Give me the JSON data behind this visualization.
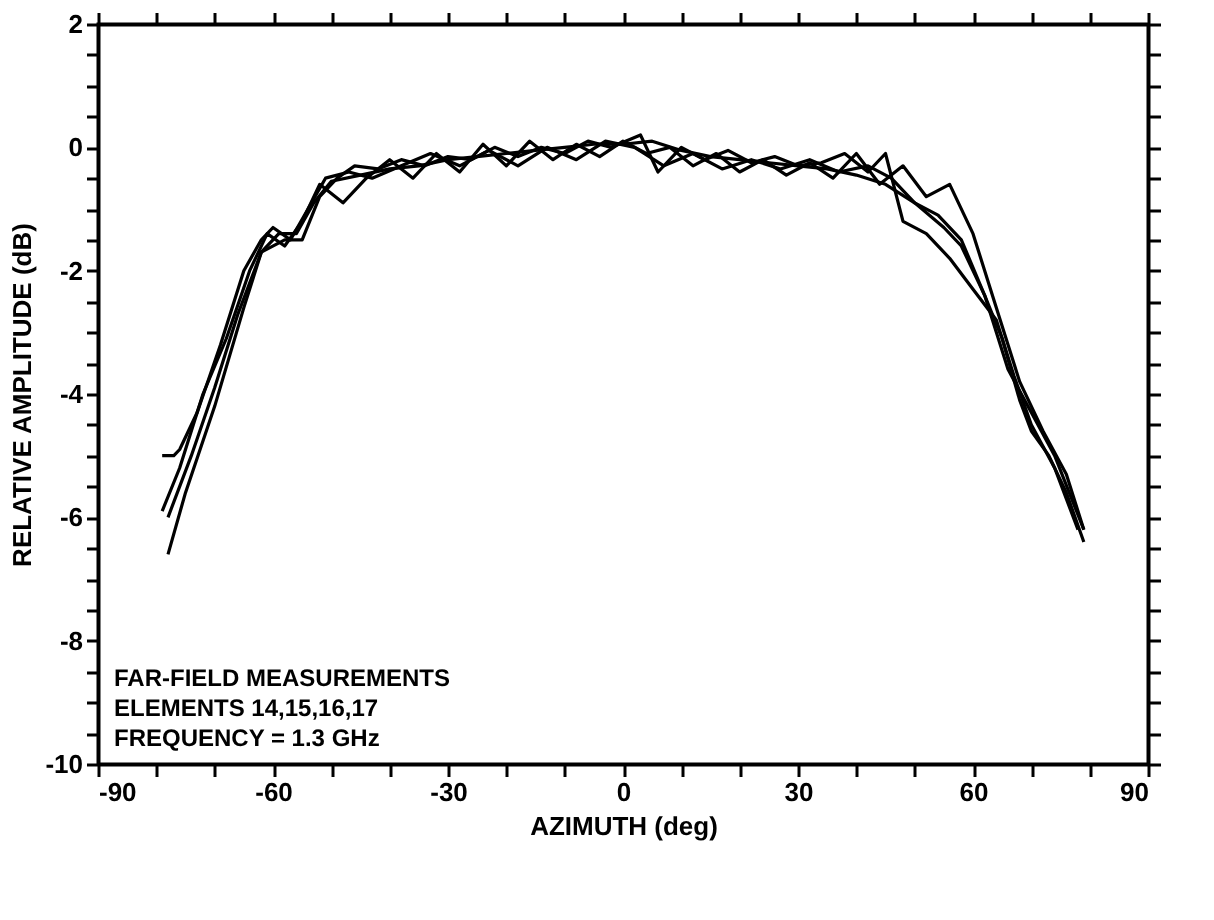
{
  "chart_data": {
    "type": "line",
    "xlabel": "AZIMUTH (deg)",
    "ylabel": "RELATIVE AMPLITUDE (dB)",
    "xlim": [
      -90,
      90
    ],
    "ylim": [
      -10,
      2
    ],
    "xticks": [
      -90,
      {
        "value": -80,
        "label": null
      },
      {
        "value": -70,
        "label": null
      },
      -60,
      {
        "value": -50,
        "label": null
      },
      {
        "value": -40,
        "label": null
      },
      -30,
      {
        "value": -20,
        "label": null
      },
      {
        "value": -10,
        "label": null
      },
      0,
      {
        "value": 10,
        "label": null
      },
      {
        "value": 20,
        "label": null
      },
      30,
      {
        "value": 40,
        "label": null
      },
      {
        "value": 50,
        "label": null
      },
      60,
      {
        "value": 70,
        "label": null
      },
      {
        "value": 80,
        "label": null
      },
      90
    ],
    "yticks": [
      -10,
      {
        "value": -9.5,
        "label": null
      },
      {
        "value": -9,
        "label": null
      },
      {
        "value": -8.5,
        "label": null
      },
      -8,
      {
        "value": -7.5,
        "label": null
      },
      {
        "value": -7,
        "label": null
      },
      {
        "value": -6.5,
        "label": null
      },
      -6,
      {
        "value": -5.5,
        "label": null
      },
      {
        "value": -5,
        "label": null
      },
      {
        "value": -4.5,
        "label": null
      },
      -4,
      {
        "value": -3.5,
        "label": null
      },
      {
        "value": -3,
        "label": null
      },
      {
        "value": -2.5,
        "label": null
      },
      -2,
      {
        "value": -1.5,
        "label": null
      },
      {
        "value": -1,
        "label": null
      },
      {
        "value": -0.5,
        "label": null
      },
      0,
      {
        "value": 0.5,
        "label": null
      },
      {
        "value": 1,
        "label": null
      },
      {
        "value": 1.5,
        "label": null
      },
      2
    ],
    "grid": false,
    "legend": false,
    "marker": "none",
    "line_style": "solid",
    "annotations": [
      "FAR-FIELD MEASUREMENTS",
      "ELEMENTS 14,15,16,17",
      "FREQUENCY = 1.3 GHz"
    ],
    "series": [
      {
        "color": "#000000",
        "x": [
          -78,
          -75,
          -70,
          -65,
          -62,
          -59,
          -56,
          -53,
          -50,
          -45,
          -40,
          -35,
          -30,
          -25,
          -20,
          -15,
          -10,
          -5,
          0,
          5,
          10,
          15,
          20,
          25,
          30,
          35,
          40,
          45,
          50,
          55,
          58,
          62,
          65,
          68,
          70,
          73,
          76,
          79
        ],
        "values": [
          -6.6,
          -5.6,
          -4.2,
          -2.6,
          -1.7,
          -1.4,
          -1.4,
          -0.9,
          -0.55,
          -0.45,
          -0.35,
          -0.3,
          -0.2,
          -0.15,
          -0.1,
          -0.05,
          0,
          0.05,
          0.05,
          0.1,
          -0.05,
          -0.15,
          -0.2,
          -0.25,
          -0.3,
          -0.35,
          -0.45,
          -0.6,
          -0.9,
          -1.3,
          -1.6,
          -2.4,
          -3.1,
          -4.1,
          -4.6,
          -5.0,
          -5.6,
          -6.4
        ]
      },
      {
        "color": "#000000",
        "x": [
          -79,
          -77,
          -76,
          -73,
          -69,
          -65,
          -62,
          -60,
          -57,
          -54,
          -51,
          -47,
          -43,
          -38,
          -33,
          -28,
          -23,
          -18,
          -13,
          -8,
          -3,
          2,
          7,
          12,
          17,
          22,
          27,
          32,
          37,
          42,
          46,
          50,
          54,
          58,
          62,
          66,
          70,
          74,
          79
        ],
        "values": [
          -5.0,
          -5.0,
          -4.9,
          -4.3,
          -3.2,
          -2.0,
          -1.5,
          -1.3,
          -1.5,
          -1.0,
          -0.5,
          -0.4,
          -0.5,
          -0.3,
          -0.1,
          -0.3,
          -0.05,
          -0.3,
          0.0,
          -0.2,
          0.1,
          0.0,
          -0.3,
          -0.1,
          -0.35,
          -0.2,
          -0.35,
          -0.2,
          -0.4,
          -0.3,
          -0.5,
          -0.9,
          -1.1,
          -1.5,
          -2.4,
          -3.6,
          -4.3,
          -5.0,
          -6.2
        ]
      },
      {
        "color": "#000000",
        "x": [
          -79,
          -76,
          -72,
          -68,
          -64,
          -61,
          -58,
          -55,
          -52,
          -48,
          -44,
          -40,
          -36,
          -32,
          -28,
          -24,
          -20,
          -16,
          -12,
          -8,
          -4,
          0,
          4,
          8,
          12,
          16,
          20,
          24,
          28,
          32,
          36,
          40,
          44,
          48,
          52,
          56,
          60,
          64,
          68,
          72,
          76,
          79
        ],
        "values": [
          -5.9,
          -5.2,
          -4.0,
          -3.1,
          -2.0,
          -1.4,
          -1.6,
          -1.2,
          -0.6,
          -0.9,
          -0.5,
          -0.2,
          -0.5,
          -0.1,
          -0.4,
          0.05,
          -0.3,
          0.1,
          -0.2,
          0.05,
          -0.15,
          0.1,
          -0.1,
          0.0,
          -0.3,
          -0.1,
          -0.4,
          -0.2,
          -0.45,
          -0.25,
          -0.5,
          -0.1,
          -0.6,
          -0.3,
          -0.8,
          -0.6,
          -1.4,
          -2.6,
          -3.8,
          -4.6,
          -5.3,
          -6.2
        ]
      },
      {
        "color": "#000000",
        "x": [
          -78,
          -74,
          -70,
          -66,
          -62,
          -58,
          -55,
          -52,
          -49,
          -46,
          -42,
          -38,
          -34,
          -30,
          -26,
          -22,
          -18,
          -14,
          -10,
          -6,
          -2,
          3,
          6,
          10,
          14,
          18,
          22,
          26,
          30,
          34,
          38,
          42,
          45,
          48,
          52,
          56,
          60,
          64,
          67,
          70,
          74,
          78
        ],
        "values": [
          -6.0,
          -5.0,
          -3.9,
          -2.7,
          -1.7,
          -1.5,
          -1.5,
          -0.8,
          -0.5,
          -0.3,
          -0.35,
          -0.2,
          -0.3,
          -0.15,
          -0.2,
          0.0,
          -0.15,
          0.0,
          -0.1,
          0.1,
          0.0,
          0.2,
          -0.4,
          0.0,
          -0.2,
          -0.05,
          -0.25,
          -0.15,
          -0.3,
          -0.25,
          -0.1,
          -0.4,
          -0.1,
          -1.2,
          -1.4,
          -1.8,
          -2.3,
          -2.8,
          -3.7,
          -4.5,
          -5.2,
          -6.2
        ]
      }
    ]
  }
}
